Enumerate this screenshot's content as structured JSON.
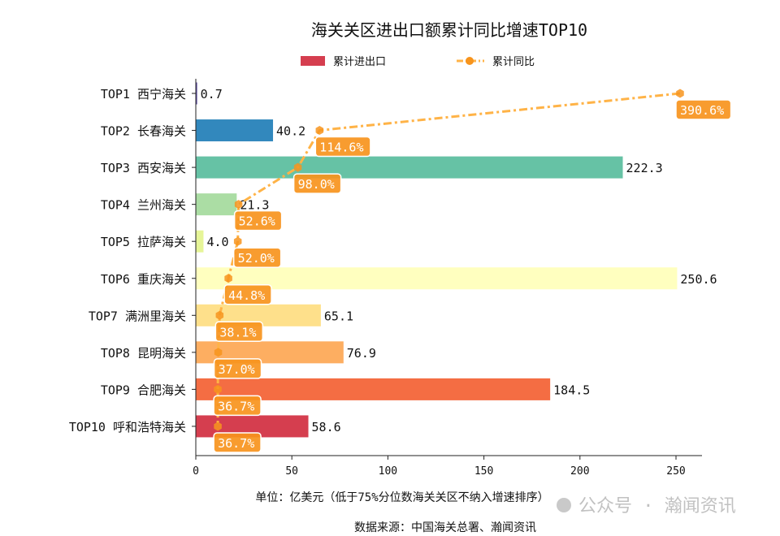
{
  "chart_data": {
    "type": "bar",
    "orientation": "horizontal",
    "title": "海关关区进出口额累计同比增速TOP10",
    "categories": [
      "TOP1 西宁海关",
      "TOP2 长春海关",
      "TOP3 西安海关",
      "TOP4 兰州海关",
      "TOP5 拉萨海关",
      "TOP6 重庆海关",
      "TOP7 满洲里海关",
      "TOP8 昆明海关",
      "TOP9 合肥海关",
      "TOP10 呼和浩特海关"
    ],
    "series": [
      {
        "name": "累计进出口",
        "type": "bar",
        "values": [
          0.7,
          40.2,
          222.3,
          21.3,
          4.0,
          250.6,
          65.1,
          76.9,
          184.5,
          58.6
        ],
        "colors": [
          "#5e4fa2",
          "#3288bd",
          "#66c2a5",
          "#abdda4",
          "#e6f598",
          "#ffffbf",
          "#fee08b",
          "#fdae61",
          "#f46d43",
          "#d53e4f"
        ]
      },
      {
        "name": "累计同比",
        "type": "line",
        "unit": "%",
        "values": [
          390.6,
          114.6,
          98.0,
          52.6,
          52.0,
          44.8,
          38.1,
          37.0,
          36.7,
          36.7
        ],
        "color": "#ffb347",
        "marker_color": "#f7941d",
        "line_style": "dash-dot"
      }
    ],
    "data_labels_bar": [
      "0.7",
      "40.2",
      "222.3",
      "21.3",
      "4.0",
      "250.6",
      "65.1",
      "76.9",
      "184.5",
      "58.6"
    ],
    "data_labels_line": [
      "390.6%",
      "114.6%",
      "98.0%",
      "52.6%",
      "52.0%",
      "44.8%",
      "38.1%",
      "37.0%",
      "36.7%",
      "36.7%"
    ],
    "xlabel": "单位：亿美元（低于75%分位数海关关区不纳入增速排序）",
    "xticks": [
      "0",
      "50",
      "100",
      "150",
      "200",
      "250"
    ],
    "xlim": [
      0,
      263
    ],
    "grid": false,
    "legend_position": "top-center",
    "source": "数据来源：中国海关总署、瀚闻资讯",
    "watermark": "公众号 · 瀚闻资讯"
  }
}
